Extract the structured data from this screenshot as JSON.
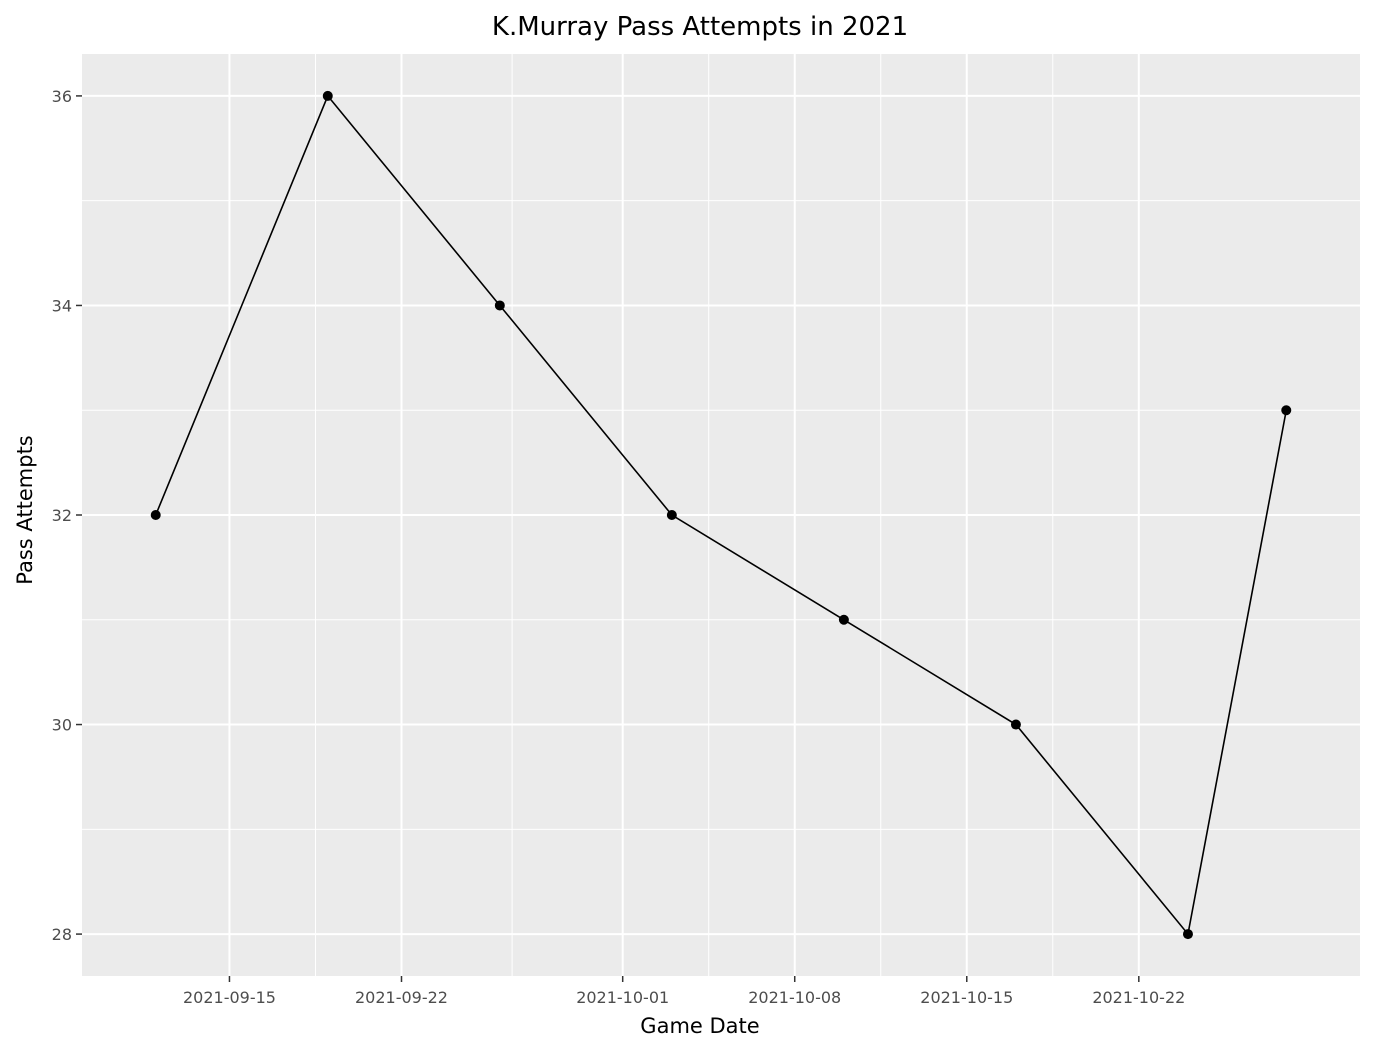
{
  "chart_data": {
    "type": "line",
    "title": "K.Murray Pass Attempts in 2021",
    "xlabel": "Game Date",
    "ylabel": "Pass Attempts",
    "x_axis_type": "date",
    "x_ticks": [
      "2021-09-15",
      "2021-09-22",
      "2021-10-01",
      "2021-10-08",
      "2021-10-15",
      "2021-10-22"
    ],
    "y_ticks": [
      28,
      30,
      32,
      34,
      36
    ],
    "xlim": [
      "2021-09-09",
      "2021-10-31"
    ],
    "ylim": [
      27.6,
      36.4
    ],
    "grid": true,
    "legend": "none",
    "series": [
      {
        "x": [
          "2021-09-12",
          "2021-09-19",
          "2021-09-26",
          "2021-10-03",
          "2021-10-10",
          "2021-10-17",
          "2021-10-24",
          "2021-10-28"
        ],
        "y": [
          32,
          36,
          34,
          32,
          31,
          30,
          28,
          33
        ],
        "color": "#000000"
      }
    ],
    "panel_background": "#ebebeb",
    "grid_color": "#ffffff"
  }
}
